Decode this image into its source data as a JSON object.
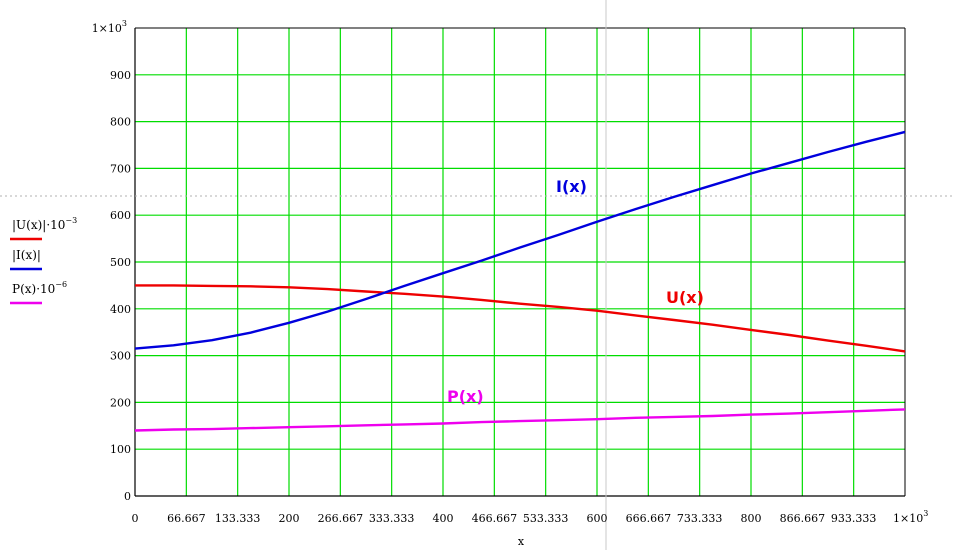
{
  "chart_data": {
    "type": "line",
    "xlabel": "x",
    "xlim": [
      0,
      1000
    ],
    "ylim": [
      0,
      1000
    ],
    "x_ticks": [
      {
        "value": 0,
        "label": "0"
      },
      {
        "value": 66.667,
        "label": "66.667"
      },
      {
        "value": 133.333,
        "label": "133.333"
      },
      {
        "value": 200,
        "label": "200"
      },
      {
        "value": 266.667,
        "label": "266.667"
      },
      {
        "value": 333.333,
        "label": "333.333"
      },
      {
        "value": 400,
        "label": "400"
      },
      {
        "value": 466.667,
        "label": "466.667"
      },
      {
        "value": 533.333,
        "label": "533.333"
      },
      {
        "value": 600,
        "label": "600"
      },
      {
        "value": 666.667,
        "label": "666.667"
      },
      {
        "value": 733.333,
        "label": "733.333"
      },
      {
        "value": 800,
        "label": "800"
      },
      {
        "value": 866.667,
        "label": "866.667"
      },
      {
        "value": 933.333,
        "label": "933.333"
      }
    ],
    "x_end_label": "1×10",
    "x_end_exp": "3",
    "y_ticks": [
      {
        "value": 0,
        "label": "0"
      },
      {
        "value": 100,
        "label": "100"
      },
      {
        "value": 200,
        "label": "200"
      },
      {
        "value": 300,
        "label": "300"
      },
      {
        "value": 400,
        "label": "400"
      },
      {
        "value": 500,
        "label": "500"
      },
      {
        "value": 600,
        "label": "600"
      },
      {
        "value": 700,
        "label": "700"
      },
      {
        "value": 800,
        "label": "800"
      },
      {
        "value": 900,
        "label": "900"
      }
    ],
    "y_end_label": "1×10",
    "y_end_exp": "3",
    "grid": true,
    "grid_color": "#00dd00",
    "legend_position": "left",
    "x": [
      0,
      50,
      100,
      150,
      200,
      250,
      300,
      350,
      400,
      450,
      500,
      550,
      600,
      650,
      700,
      750,
      800,
      850,
      900,
      950,
      1000
    ],
    "series": [
      {
        "name": "|U(x)|·10",
        "legend_exp": "−3",
        "annotation": "U(x)",
        "color": "#ee0000",
        "values": [
          450,
          450,
          449,
          448,
          446,
          442,
          437,
          432,
          426,
          419,
          411,
          404,
          396,
          386,
          376,
          366,
          355,
          344,
          332,
          321,
          309
        ]
      },
      {
        "name": "|I(x)|",
        "legend_exp": "",
        "annotation": "I(x)",
        "color": "#0000dd",
        "values": [
          315,
          322,
          333,
          349,
          370,
          394,
          421,
          449,
          476,
          503,
          531,
          558,
          586,
          613,
          639,
          664,
          689,
          712,
          735,
          757,
          778
        ]
      },
      {
        "name": "P(x)·10",
        "legend_exp": "−6",
        "annotation": "P(x)",
        "color": "#ee00ee",
        "values": [
          140,
          142,
          143,
          145,
          147,
          149,
          151,
          153,
          155,
          158,
          160,
          162,
          164,
          167,
          169,
          171,
          174,
          176,
          179,
          182,
          185
        ]
      }
    ]
  }
}
